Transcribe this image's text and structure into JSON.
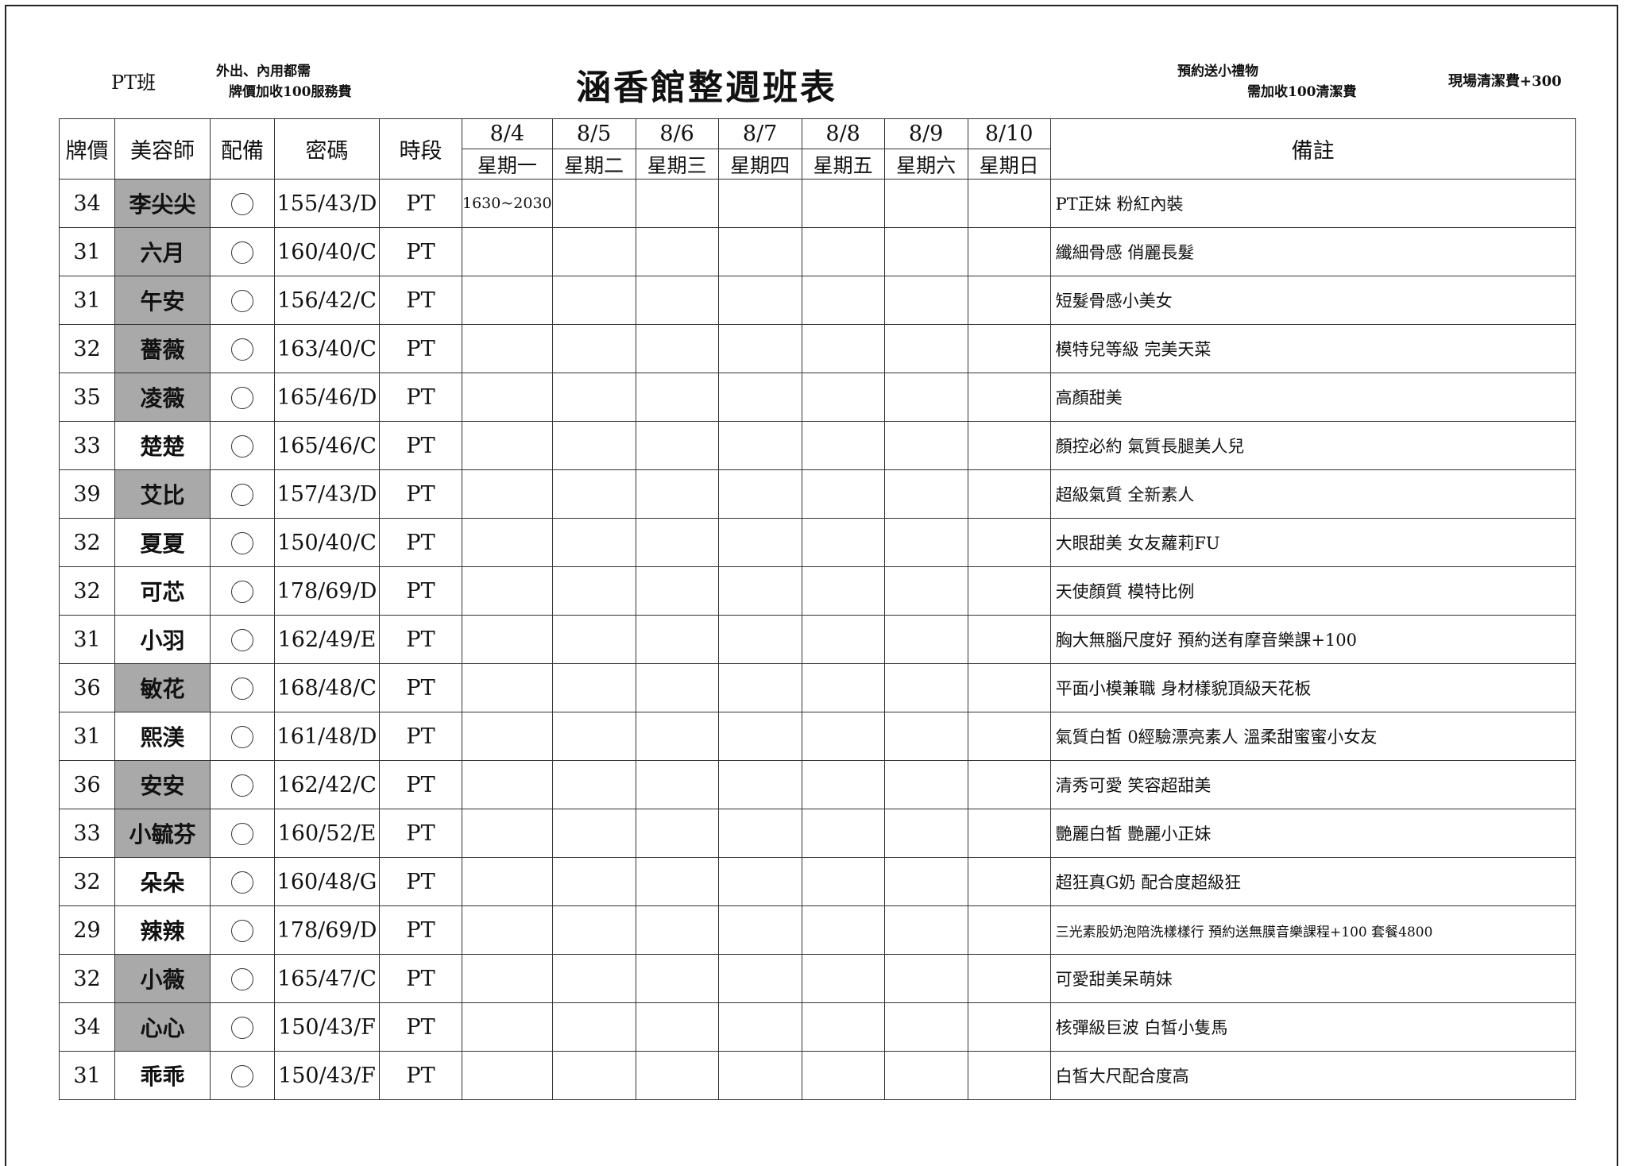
{
  "header": {
    "class_label": "PT班",
    "note_left_1": "外出、內用都需",
    "note_left_2": "牌價加收100服務費",
    "title": "涵香館整週班表",
    "note_right_1": "預約送小禮物",
    "note_right_2": "需加收100清潔費",
    "note_far_right": "現場清潔費+300"
  },
  "columns": {
    "price": "牌價",
    "stylist": "美容師",
    "equip": "配備",
    "code": "密碼",
    "slot": "時段",
    "remarks": "備註"
  },
  "days": [
    {
      "date": "8/4",
      "weekday": "星期一"
    },
    {
      "date": "8/5",
      "weekday": "星期二"
    },
    {
      "date": "8/6",
      "weekday": "星期三"
    },
    {
      "date": "8/7",
      "weekday": "星期四"
    },
    {
      "date": "8/8",
      "weekday": "星期五"
    },
    {
      "date": "8/9",
      "weekday": "星期六"
    },
    {
      "date": "8/10",
      "weekday": "星期日"
    }
  ],
  "highlight_color": "#a9a9a9",
  "rows": [
    {
      "price": "34",
      "name": "李尖尖",
      "gray": true,
      "code": "155/43/D",
      "slot": "PT",
      "schedule": [
        "1630~2030",
        "",
        "",
        "",
        "",
        "",
        ""
      ],
      "note": "PT正妹 粉紅內裝"
    },
    {
      "price": "31",
      "name": "六月",
      "gray": true,
      "code": "160/40/C",
      "slot": "PT",
      "schedule": [
        "",
        "",
        "",
        "",
        "",
        "",
        ""
      ],
      "note": "纖細骨感 俏麗長髮"
    },
    {
      "price": "31",
      "name": "午安",
      "gray": true,
      "code": "156/42/C",
      "slot": "PT",
      "schedule": [
        "",
        "",
        "",
        "",
        "",
        "",
        ""
      ],
      "note": "短髮骨感小美女"
    },
    {
      "price": "32",
      "name": "薔薇",
      "gray": true,
      "code": "163/40/C",
      "slot": "PT",
      "schedule": [
        "",
        "",
        "",
        "",
        "",
        "",
        ""
      ],
      "note": "模特兒等級 完美天菜"
    },
    {
      "price": "35",
      "name": "凌薇",
      "gray": true,
      "code": "165/46/D",
      "slot": "PT",
      "schedule": [
        "",
        "",
        "",
        "",
        "",
        "",
        ""
      ],
      "note": "高顏甜美"
    },
    {
      "price": "33",
      "name": "楚楚",
      "gray": false,
      "code": "165/46/C",
      "slot": "PT",
      "schedule": [
        "",
        "",
        "",
        "",
        "",
        "",
        ""
      ],
      "note": "顏控必約 氣質長腿美人兒"
    },
    {
      "price": "39",
      "name": "艾比",
      "gray": true,
      "code": "157/43/D",
      "slot": "PT",
      "schedule": [
        "",
        "",
        "",
        "",
        "",
        "",
        ""
      ],
      "note": "超級氣質 全新素人"
    },
    {
      "price": "32",
      "name": "夏夏",
      "gray": false,
      "code": "150/40/C",
      "slot": "PT",
      "schedule": [
        "",
        "",
        "",
        "",
        "",
        "",
        ""
      ],
      "note": "大眼甜美 女友蘿莉FU"
    },
    {
      "price": "32",
      "name": "可芯",
      "gray": false,
      "code": "178/69/D",
      "slot": "PT",
      "schedule": [
        "",
        "",
        "",
        "",
        "",
        "",
        ""
      ],
      "note": "天使顏質 模特比例"
    },
    {
      "price": "31",
      "name": "小羽",
      "gray": false,
      "code": "162/49/E",
      "slot": "PT",
      "schedule": [
        "",
        "",
        "",
        "",
        "",
        "",
        ""
      ],
      "note": "胸大無腦尺度好 預約送有摩音樂課+100"
    },
    {
      "price": "36",
      "name": "敏花",
      "gray": true,
      "code": "168/48/C",
      "slot": "PT",
      "schedule": [
        "",
        "",
        "",
        "",
        "",
        "",
        ""
      ],
      "note": "平面小模兼職 身材樣貌頂級天花板"
    },
    {
      "price": "31",
      "name": "熙渼",
      "gray": false,
      "code": "161/48/D",
      "slot": "PT",
      "schedule": [
        "",
        "",
        "",
        "",
        "",
        "",
        ""
      ],
      "note": "氣質白皙 0經驗漂亮素人 溫柔甜蜜蜜小女友"
    },
    {
      "price": "36",
      "name": "安安",
      "gray": true,
      "code": "162/42/C",
      "slot": "PT",
      "schedule": [
        "",
        "",
        "",
        "",
        "",
        "",
        ""
      ],
      "note": "清秀可愛 笑容超甜美"
    },
    {
      "price": "33",
      "name": "小毓芬",
      "gray": true,
      "code": "160/52/E",
      "slot": "PT",
      "schedule": [
        "",
        "",
        "",
        "",
        "",
        "",
        ""
      ],
      "note": "艷麗白皙 艷麗小正妹"
    },
    {
      "price": "32",
      "name": "朵朵",
      "gray": false,
      "code": "160/48/G",
      "slot": "PT",
      "schedule": [
        "",
        "",
        "",
        "",
        "",
        "",
        ""
      ],
      "note": "超狂真G奶 配合度超級狂"
    },
    {
      "price": "29",
      "name": "辣辣",
      "gray": false,
      "code": "178/69/D",
      "slot": "PT",
      "schedule": [
        "",
        "",
        "",
        "",
        "",
        "",
        ""
      ],
      "note": "三光素股奶泡陪洗樣樣行 預約送無膜音樂課程+100 套餐4800",
      "small": true
    },
    {
      "price": "32",
      "name": "小薇",
      "gray": true,
      "code": "165/47/C",
      "slot": "PT",
      "schedule": [
        "",
        "",
        "",
        "",
        "",
        "",
        ""
      ],
      "note": "可愛甜美呆萌妹"
    },
    {
      "price": "34",
      "name": "心心",
      "gray": true,
      "code": "150/43/F",
      "slot": "PT",
      "schedule": [
        "",
        "",
        "",
        "",
        "",
        "",
        ""
      ],
      "note": "核彈級巨波 白皙小隻馬"
    },
    {
      "price": "31",
      "name": "乖乖",
      "gray": false,
      "code": "150/43/F",
      "slot": "PT",
      "schedule": [
        "",
        "",
        "",
        "",
        "",
        "",
        ""
      ],
      "note": "白皙大尺配合度高"
    }
  ]
}
